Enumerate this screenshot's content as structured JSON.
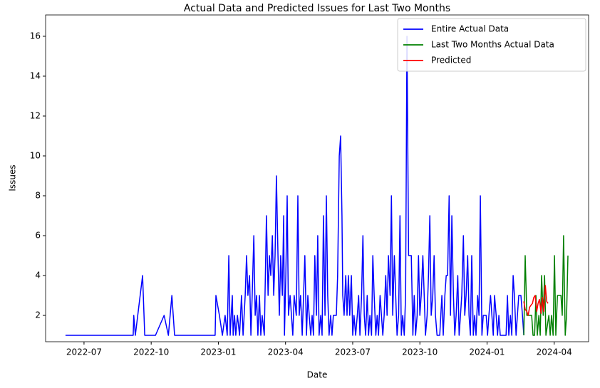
{
  "chart_data": {
    "type": "line",
    "title": "Actual Data and Predicted Issues for Last Two Months",
    "x_label": "Date",
    "y_label": "Issues",
    "legend": "upper right",
    "xlim": [
      2022.357,
      2024.378
    ],
    "ylim": [
      0.68,
      17.07
    ],
    "xticks": [
      {
        "value": 2022.5,
        "label": "2022-07"
      },
      {
        "value": 2022.75,
        "label": "2022-10"
      },
      {
        "value": 2023,
        "label": "2023-01"
      },
      {
        "value": 2023.25,
        "label": "2023-04"
      },
      {
        "value": 2023.5,
        "label": "2023-07"
      },
      {
        "value": 2023.75,
        "label": "2023-10"
      },
      {
        "value": 2024,
        "label": "2024-01"
      },
      {
        "value": 2024.25,
        "label": "2024-04"
      }
    ],
    "yticks": [
      2,
      4,
      6,
      8,
      10,
      12,
      14,
      16
    ],
    "series": [
      {
        "name": "Entire Actual Data",
        "color": "#0000ff",
        "x": [
          2022.431,
          2022.683,
          2022.685,
          2022.691,
          2022.718,
          2022.726,
          2022.766,
          2022.798,
          2022.814,
          2022.827,
          2022.837,
          2022.988,
          2022.991,
          2023.004,
          2023.015,
          2023.025,
          2023.033,
          2023.039,
          2023.044,
          2023.052,
          2023.055,
          2023.06,
          2023.065,
          2023.071,
          2023.079,
          2023.086,
          2023.092,
          2023.1,
          2023.105,
          2023.11,
          2023.116,
          2023.121,
          2023.126,
          2023.132,
          2023.137,
          2023.142,
          2023.147,
          2023.153,
          2023.158,
          2023.163,
          2023.171,
          2023.179,
          2023.185,
          2023.19,
          2023.195,
          2023.201,
          2023.206,
          2023.211,
          2023.216,
          2023.222,
          2023.227,
          2023.232,
          2023.238,
          2023.243,
          2023.246,
          2023.251,
          2023.256,
          2023.261,
          2023.267,
          2023.272,
          2023.277,
          2023.282,
          2023.29,
          2023.296,
          2023.301,
          2023.306,
          2023.312,
          2023.317,
          2023.322,
          2023.328,
          2023.333,
          2023.338,
          2023.344,
          2023.349,
          2023.354,
          2023.359,
          2023.365,
          2023.37,
          2023.375,
          2023.381,
          2023.386,
          2023.391,
          2023.397,
          2023.402,
          2023.407,
          2023.412,
          2023.418,
          2023.423,
          2023.428,
          2023.439,
          2023.444,
          2023.45,
          2023.455,
          2023.46,
          2023.463,
          2023.468,
          2023.474,
          2023.479,
          2023.484,
          2023.489,
          2023.495,
          2023.5,
          2023.505,
          2023.511,
          2023.517,
          2023.522,
          2023.527,
          2023.533,
          2023.538,
          2023.543,
          2023.548,
          2023.554,
          2023.559,
          2023.564,
          2023.57,
          2023.575,
          2023.58,
          2023.586,
          2023.591,
          2023.596,
          2023.602,
          2023.607,
          2023.612,
          2023.617,
          2023.623,
          2023.628,
          2023.633,
          2023.639,
          2023.644,
          2023.649,
          2023.655,
          2023.66,
          2023.665,
          2023.671,
          2023.676,
          2023.681,
          2023.686,
          2023.692,
          2023.697,
          2023.702,
          2023.708,
          2023.718,
          2023.724,
          2023.729,
          2023.734,
          2023.74,
          2023.745,
          2023.75,
          2023.755,
          2023.761,
          2023.766,
          2023.771,
          2023.777,
          2023.782,
          2023.787,
          2023.792,
          2023.798,
          2023.803,
          2023.808,
          2023.814,
          2023.824,
          2023.832,
          2023.837,
          2023.843,
          2023.848,
          2023.853,
          2023.859,
          2023.864,
          2023.869,
          2023.875,
          2023.88,
          2023.885,
          2023.891,
          2023.896,
          2023.901,
          2023.906,
          2023.912,
          2023.917,
          2023.922,
          2023.928,
          2023.933,
          2023.938,
          2023.943,
          2023.949,
          2023.954,
          2023.959,
          2023.965,
          2023.97,
          2023.975,
          2023.981,
          2023.986,
          2023.997,
          2024.002,
          2024.007,
          2024.013,
          2024.018,
          2024.023,
          2024.028,
          2024.034,
          2024.039,
          2024.044,
          2024.049,
          2024.071,
          2024.076,
          2024.081,
          2024.087,
          2024.092,
          2024.097,
          2024.102,
          2024.108,
          2024.118,
          2024.126,
          2024.132,
          2024.137
        ],
        "values": [
          1,
          1,
          2,
          1,
          4,
          1,
          1,
          2,
          1,
          3,
          1,
          1,
          3,
          2,
          1,
          2,
          1,
          5,
          1,
          3,
          1,
          2,
          1,
          2,
          1,
          3,
          1,
          3,
          5,
          3,
          4,
          1,
          3,
          6,
          2,
          3,
          1,
          3,
          1,
          2,
          1,
          7,
          3,
          5,
          4,
          6,
          3,
          5,
          9,
          5,
          2,
          5,
          3,
          7,
          1,
          4,
          8,
          2,
          3,
          2,
          1,
          3,
          2,
          8,
          2,
          3,
          1,
          3,
          5,
          1,
          3,
          2,
          1,
          2,
          1,
          5,
          2,
          6,
          1,
          2,
          1,
          7,
          2,
          8,
          3,
          1,
          2,
          1,
          2,
          2,
          4,
          10,
          11,
          7,
          3,
          2,
          4,
          2,
          4,
          2,
          4,
          1,
          2,
          1,
          2,
          3,
          1,
          3,
          6,
          2,
          1,
          3,
          1,
          2,
          1,
          5,
          3,
          1,
          2,
          1,
          3,
          2,
          1,
          2,
          4,
          2,
          5,
          3,
          8,
          2,
          5,
          3,
          1,
          2,
          7,
          1,
          2,
          1,
          3,
          16,
          5,
          5,
          1,
          3,
          1,
          2,
          5,
          2,
          3,
          5,
          3,
          1,
          2,
          4,
          7,
          2,
          3,
          5,
          2,
          1,
          1,
          3,
          1,
          3,
          4,
          4,
          8,
          2,
          7,
          3,
          1,
          2,
          4,
          1,
          2,
          3,
          6,
          2,
          3,
          5,
          2,
          1,
          5,
          1,
          2,
          1,
          3,
          2,
          8,
          1,
          2,
          2,
          1,
          2,
          3,
          2,
          1,
          3,
          2,
          1,
          2,
          1,
          1,
          3,
          1,
          2,
          1,
          4,
          3,
          1,
          3,
          3,
          2,
          1
        ]
      },
      {
        "name": "Last Two Months Actual Data",
        "color": "#008000",
        "x": [
          2024.137,
          2024.142,
          2024.148,
          2024.158,
          2024.166,
          2024.171,
          2024.177,
          2024.182,
          2024.187,
          2024.193,
          2024.198,
          2024.203,
          2024.209,
          2024.214,
          2024.219,
          2024.23,
          2024.235,
          2024.24,
          2024.246,
          2024.251,
          2024.256,
          2024.262,
          2024.275,
          2024.28,
          2024.285,
          2024.291,
          2024.296,
          2024.301
        ],
        "values": [
          1,
          5,
          2,
          2,
          2,
          1,
          1,
          3,
          1,
          2,
          1,
          4,
          2,
          4,
          1,
          2,
          1,
          2,
          1,
          5,
          1,
          3,
          3,
          2,
          6,
          1,
          2,
          5
        ]
      },
      {
        "name": "Predicted",
        "color": "#ff0000",
        "x": [
          2024.137,
          2024.142,
          2024.148,
          2024.153,
          2024.158,
          2024.163,
          2024.169,
          2024.174,
          2024.179,
          2024.185,
          2024.19,
          2024.195,
          2024.201,
          2024.206,
          2024.211,
          2024.217,
          2024.222,
          2024.227
        ],
        "values": [
          2.7,
          2.3,
          2.2,
          2.0,
          2.4,
          2.5,
          2.6,
          2.9,
          3.0,
          2.2,
          2.6,
          2.8,
          2.1,
          2.9,
          2.2,
          3.5,
          2.7,
          2.6
        ]
      }
    ]
  }
}
